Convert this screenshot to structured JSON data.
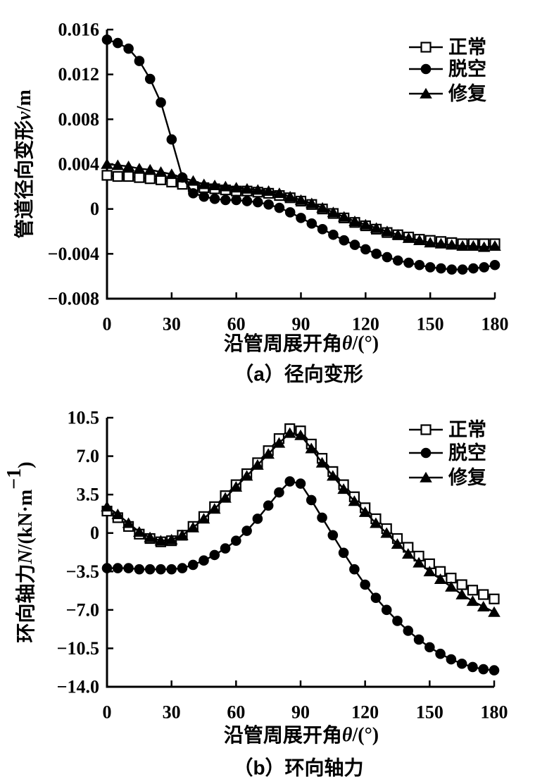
{
  "page": {
    "background": "#ffffff",
    "ink": "#000000"
  },
  "chart_data": [
    {
      "id": "a",
      "type": "line",
      "caption": "（a）径向变形",
      "xlabel": {
        "pre": "沿管周展开角",
        "sym": "θ",
        "post": "/(°)"
      },
      "ylabel": {
        "pre": "管道径向变形",
        "sym": "v",
        "post": "/m",
        "sup": "",
        "post2": ""
      },
      "xlim": [
        0,
        180
      ],
      "ylim": [
        -0.008,
        0.016
      ],
      "xticks": [
        0,
        30,
        60,
        90,
        120,
        150,
        180
      ],
      "xtick_labels": [
        "0",
        "30",
        "60",
        "90",
        "120",
        "150",
        "180"
      ],
      "yticks": [
        0.016,
        0.012,
        0.008,
        0.004,
        0,
        -0.004,
        -0.008
      ],
      "ytick_labels": [
        "0.016",
        "0.012",
        "0.008",
        "0.004",
        "0",
        "−0.004",
        "−0.008"
      ],
      "legend_position": "top-right",
      "grid": false,
      "x": [
        0,
        5,
        10,
        15,
        20,
        25,
        30,
        35,
        40,
        45,
        50,
        55,
        60,
        65,
        70,
        75,
        80,
        85,
        90,
        95,
        100,
        105,
        110,
        115,
        120,
        125,
        130,
        135,
        140,
        145,
        150,
        155,
        160,
        165,
        170,
        175,
        180
      ],
      "series": [
        {
          "name": "正常",
          "marker": "square",
          "values": [
            0.003,
            0.0029,
            0.0029,
            0.0028,
            0.0027,
            0.0026,
            0.0024,
            0.0022,
            0.002,
            0.0019,
            0.0018,
            0.0017,
            0.0016,
            0.0016,
            0.0015,
            0.0014,
            0.0012,
            0.001,
            0.0007,
            0.0004,
            0.0,
            -0.0004,
            -0.0008,
            -0.0012,
            -0.0015,
            -0.0018,
            -0.0021,
            -0.0023,
            -0.0025,
            -0.0027,
            -0.0028,
            -0.0029,
            -0.003,
            -0.0031,
            -0.0031,
            -0.0031,
            -0.0031
          ]
        },
        {
          "name": "脱空",
          "marker": "circle",
          "values": [
            0.0151,
            0.0148,
            0.0143,
            0.0132,
            0.0116,
            0.0095,
            0.0062,
            0.0028,
            0.0014,
            0.0011,
            0.0009,
            0.0008,
            0.0008,
            0.0007,
            0.0006,
            0.0004,
            0.0001,
            -0.0003,
            -0.0008,
            -0.0013,
            -0.0018,
            -0.0023,
            -0.0028,
            -0.0032,
            -0.0036,
            -0.004,
            -0.0043,
            -0.0046,
            -0.0048,
            -0.005,
            -0.0052,
            -0.0053,
            -0.0054,
            -0.0054,
            -0.0053,
            -0.0052,
            -0.005
          ]
        },
        {
          "name": "修复",
          "marker": "triangle",
          "values": [
            0.004,
            0.0039,
            0.0038,
            0.0036,
            0.0035,
            0.0033,
            0.0031,
            0.0028,
            0.0025,
            0.0022,
            0.0021,
            0.002,
            0.0019,
            0.0018,
            0.0017,
            0.0016,
            0.0014,
            0.0011,
            0.0008,
            0.0005,
            0.0001,
            -0.0003,
            -0.0007,
            -0.0011,
            -0.0014,
            -0.0017,
            -0.002,
            -0.0023,
            -0.0026,
            -0.0028,
            -0.003,
            -0.0031,
            -0.0032,
            -0.0033,
            -0.0033,
            -0.0034,
            -0.0033
          ]
        }
      ]
    },
    {
      "id": "b",
      "type": "line",
      "caption": "（b）环向轴力",
      "xlabel": {
        "pre": "沿管周展开角",
        "sym": "θ",
        "post": "/(°)"
      },
      "ylabel": {
        "pre": "环向轴力",
        "sym": "N",
        "post": "/(kN·m",
        "sup": "−1",
        "post2": ")"
      },
      "xlim": [
        0,
        180
      ],
      "ylim": [
        -14.0,
        10.5
      ],
      "xticks": [
        0,
        30,
        60,
        90,
        120,
        150,
        180
      ],
      "xtick_labels": [
        "0",
        "30",
        "60",
        "90",
        "120",
        "150",
        "180"
      ],
      "yticks": [
        10.5,
        7.0,
        3.5,
        0,
        -3.5,
        -7.0,
        -10.5,
        -14.0
      ],
      "ytick_labels": [
        "10.5",
        "7.0",
        "3.5",
        "0",
        "−3.5",
        "−7.0",
        "−10.5",
        "−14.0"
      ],
      "legend_position": "top-right",
      "grid": false,
      "x": [
        0,
        5,
        10,
        15,
        20,
        25,
        30,
        35,
        40,
        45,
        50,
        55,
        60,
        65,
        70,
        75,
        80,
        85,
        90,
        95,
        100,
        105,
        110,
        115,
        120,
        125,
        130,
        135,
        140,
        145,
        150,
        155,
        160,
        165,
        170,
        175,
        180
      ],
      "series": [
        {
          "name": "正常",
          "marker": "square",
          "values": [
            2.0,
            1.4,
            0.6,
            -0.1,
            -0.5,
            -0.8,
            -0.7,
            -0.2,
            0.6,
            1.5,
            2.4,
            3.4,
            4.4,
            5.4,
            6.4,
            7.5,
            8.6,
            9.5,
            9.3,
            8.1,
            6.8,
            5.6,
            4.4,
            3.3,
            2.3,
            1.3,
            0.4,
            -0.5,
            -1.3,
            -2.1,
            -2.8,
            -3.5,
            -4.1,
            -4.7,
            -5.2,
            -5.6,
            -6.0
          ]
        },
        {
          "name": "脱空",
          "marker": "circle",
          "values": [
            -3.2,
            -3.2,
            -3.2,
            -3.3,
            -3.3,
            -3.3,
            -3.3,
            -3.2,
            -2.9,
            -2.5,
            -2.0,
            -1.4,
            -0.7,
            0.2,
            1.3,
            2.5,
            3.7,
            4.7,
            4.5,
            3.0,
            1.4,
            -0.2,
            -1.8,
            -3.3,
            -4.7,
            -5.9,
            -7.0,
            -8.0,
            -8.9,
            -9.7,
            -10.4,
            -11.0,
            -11.5,
            -11.9,
            -12.2,
            -12.4,
            -12.5
          ]
        },
        {
          "name": "修复",
          "marker": "triangle",
          "values": [
            2.4,
            1.7,
            0.9,
            0.1,
            -0.4,
            -0.7,
            -0.6,
            -0.2,
            0.5,
            1.3,
            2.2,
            3.2,
            4.2,
            5.2,
            6.2,
            7.2,
            8.2,
            9.1,
            8.9,
            7.7,
            6.4,
            5.2,
            4.0,
            2.9,
            1.9,
            0.9,
            0.0,
            -1.0,
            -1.9,
            -2.7,
            -3.5,
            -4.2,
            -4.9,
            -5.6,
            -6.2,
            -6.7,
            -7.2
          ]
        }
      ]
    }
  ]
}
